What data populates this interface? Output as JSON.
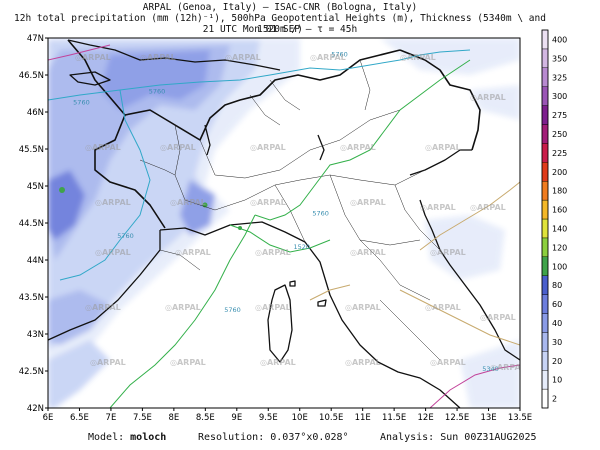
{
  "header": {
    "line1": "ARPAL (Genoa, Italy)  –  ISAC-CNR (Bologna, Italy)",
    "line2": "12h total precipitation (mm (12h)⁻¹), 500hPa Geopotential Heights (m), Thickness (5340m \\ and 1520m /)",
    "line3": "21 UTC Mon 01 SEP  –  τ = 45h"
  },
  "map": {
    "lat_labels": [
      "47N",
      "46.5N",
      "46N",
      "45.5N",
      "45N",
      "44.5N",
      "44N",
      "43.5N",
      "43N",
      "42.5N",
      "42N"
    ],
    "lat_values": [
      47,
      46.5,
      46,
      45.5,
      45,
      44.5,
      44,
      43.5,
      43,
      42.5,
      42
    ],
    "lon_labels": [
      "6E",
      "6.5E",
      "7E",
      "7.5E",
      "8E",
      "8.5E",
      "9E",
      "9.5E",
      "10E",
      "10.5E",
      "11E",
      "11.5E",
      "12E",
      "12.5E",
      "13E",
      "13.5E"
    ],
    "lon_values": [
      6,
      6.5,
      7,
      7.5,
      8,
      8.5,
      9,
      9.5,
      10,
      10.5,
      11,
      11.5,
      12,
      12.5,
      13,
      13.5
    ],
    "extent": {
      "lon_min": 6,
      "lon_max": 13.5,
      "lat_min": 42,
      "lat_max": 47
    },
    "watermark": "ARPAL",
    "contour_labels": [
      {
        "text": "5760",
        "lon": 7.6,
        "lat": 46.25
      },
      {
        "text": "5760",
        "lon": 10.5,
        "lat": 46.75
      },
      {
        "text": "5760",
        "lon": 10.2,
        "lat": 44.6
      },
      {
        "text": "5760",
        "lon": 8.8,
        "lat": 43.3
      },
      {
        "text": "5760",
        "lon": 6.4,
        "lat": 46.1
      },
      {
        "text": "5760",
        "lon": 7.1,
        "lat": 44.3
      },
      {
        "text": "1520",
        "lon": 9.9,
        "lat": 44.15
      },
      {
        "text": "5340",
        "lon": 12.9,
        "lat": 42.5
      }
    ]
  },
  "colorbar": {
    "labels": [
      "2",
      "10",
      "20",
      "30",
      "40",
      "60",
      "80",
      "100",
      "120",
      "140",
      "160",
      "180",
      "200",
      "225",
      "250",
      "275",
      "300",
      "325",
      "350",
      "400"
    ],
    "colors": [
      "#ffffff",
      "#e6ecfa",
      "#c8d4f5",
      "#a9b8ee",
      "#8a9be6",
      "#6d7edc",
      "#4a5fcc",
      "#3fa34a",
      "#8ccf3e",
      "#dfe33a",
      "#f4b827",
      "#f07c1f",
      "#e03b1a",
      "#c91d4a",
      "#a21e78",
      "#7d1f8e",
      "#9a55b5",
      "#b88ad0",
      "#d3b7e2",
      "#ece0f2"
    ]
  },
  "footer": {
    "model_label": "Model:",
    "model": "moloch",
    "resolution_label": "Resolution:",
    "resolution": "0.037°x0.028°",
    "analysis_label": "Analysis:",
    "analysis": "Sun 00Z31AUG2025"
  }
}
